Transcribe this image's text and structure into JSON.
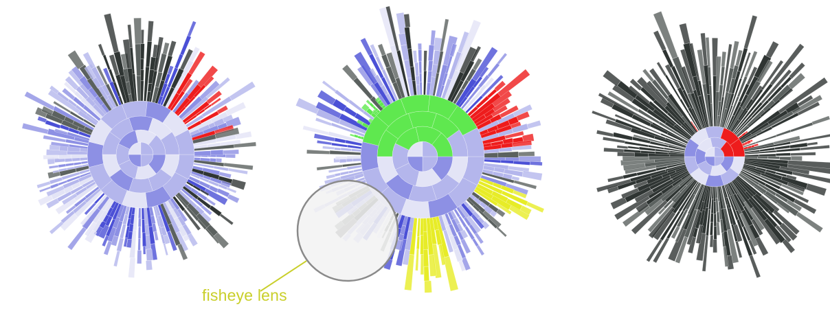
{
  "annotation": {
    "label": "fisheye lens",
    "color": "#c9cf2a"
  },
  "palette": {
    "light_blue": "#b4b6ec",
    "mid_blue": "#8d90e4",
    "blue": "#4b50d6",
    "pale": "#e3e4f6",
    "dark": "#2f3533",
    "grey": "#5b615f",
    "red": "#ee1c1c",
    "green": "#5fe84f",
    "yellow": "#e7ec27",
    "lens_stroke": "#8a8a8a",
    "lens_fill": "#f2f3f3"
  },
  "panels": [
    {
      "id": "original",
      "theme": "blue",
      "highlights": [
        "red"
      ]
    },
    {
      "id": "distorted",
      "theme": "blue",
      "highlights": [
        "red",
        "green",
        "yellow"
      ],
      "lens": true
    },
    {
      "id": "filtered",
      "theme": "dark",
      "highlights": [
        "red"
      ]
    }
  ]
}
